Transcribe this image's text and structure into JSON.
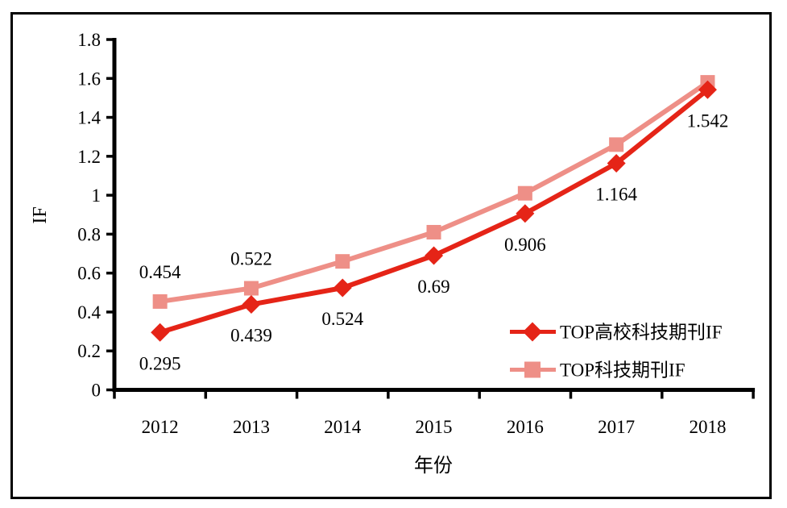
{
  "figure": {
    "background": "#ffffff",
    "border_color": "#000000"
  },
  "chart_data": {
    "type": "line",
    "title": "",
    "xlabel": "年份",
    "ylabel": "IF",
    "categories": [
      "2012",
      "2013",
      "2014",
      "2015",
      "2016",
      "2017",
      "2018"
    ],
    "ylim": [
      0,
      1.8
    ],
    "ytick_step": 0.2,
    "ytick_labels": [
      "0",
      "0.2",
      "0.4",
      "0.6",
      "0.8",
      "1",
      "1.2",
      "1.4",
      "1.6",
      "1.8"
    ],
    "grid": false,
    "legend_position": "inside-right",
    "series": [
      {
        "name": "TOP高校科技期刊IF",
        "color": "#e52417",
        "marker": "diamond",
        "values": [
          0.295,
          0.439,
          0.524,
          0.69,
          0.906,
          1.164,
          1.542
        ],
        "labels": [
          "0.295",
          "0.439",
          "0.524",
          "0.69",
          "0.906",
          "1.164",
          "1.542"
        ],
        "label_position": "below"
      },
      {
        "name": "TOP科技期刊IF",
        "color": "#ee8f87",
        "marker": "square",
        "values": [
          0.454,
          0.522,
          0.66,
          0.81,
          1.01,
          1.26,
          1.58
        ],
        "labels": [
          "0.454",
          "0.522",
          "",
          "",
          "",
          "",
          ""
        ],
        "label_position": "above"
      }
    ]
  }
}
